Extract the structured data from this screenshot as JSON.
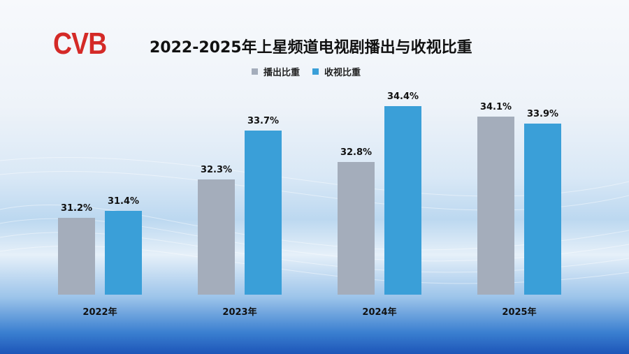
{
  "logo_text": "CVB",
  "chart_data": {
    "type": "bar",
    "title": "2022-2025年上星频道电视剧播出与收视比重",
    "categories": [
      "2022年",
      "2023年",
      "2024年",
      "2025年"
    ],
    "series": [
      {
        "name": "播出比重",
        "values": [
          31.2,
          32.3,
          32.8,
          34.1
        ],
        "labels": [
          "31.2%",
          "32.3%",
          "32.8%",
          "34.1%"
        ],
        "color": "#a4adbb"
      },
      {
        "name": "收视比重",
        "values": [
          31.4,
          33.7,
          34.4,
          33.9
        ],
        "labels": [
          "31.4%",
          "33.7%",
          "34.4%",
          "33.9%"
        ],
        "color": "#3a9fd8"
      }
    ],
    "ylim": [
      29,
      35
    ],
    "legend": "top-center",
    "grid": false,
    "xlabel": "",
    "ylabel": ""
  }
}
